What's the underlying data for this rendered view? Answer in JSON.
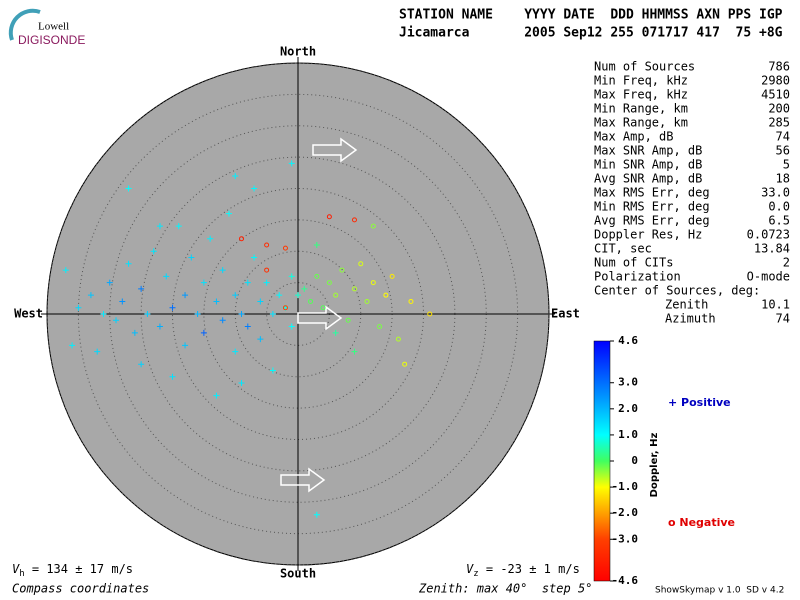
{
  "header": {
    "logo_top": "Lowell",
    "logo_bottom": "DIGISONDE",
    "labels": "STATION NAME    YYYY DATE  DDD HHMMSS AXN PPS IGP",
    "values": "Jicamarca       2005 Sep12 255 071717 417  75 +8G"
  },
  "stats": [
    [
      "Num of Sources",
      786
    ],
    [
      "Min Freq, kHz",
      2980
    ],
    [
      "Max Freq, kHz",
      4510
    ],
    [
      "Min Range, km",
      200
    ],
    [
      "Max Range, km",
      285
    ],
    [
      "Max Amp, dB",
      74
    ],
    [
      "Max SNR Amp, dB",
      56
    ],
    [
      "Min SNR Amp, dB",
      5
    ],
    [
      "Avg SNR Amp, dB",
      18
    ],
    [
      "Max RMS Err, deg",
      "33.0"
    ],
    [
      "Min RMS Err, deg",
      "0.0"
    ],
    [
      "Avg RMS Err, deg",
      6.5
    ],
    [
      "Doppler Res, Hz",
      0.0723
    ],
    [
      "CIT, sec",
      13.84
    ],
    [
      "Num of CITs",
      2
    ],
    [
      "Polarization",
      "O-mode"
    ],
    [
      "Center of Sources, deg:"
    ],
    [
      "Zenith",
      10.1
    ],
    [
      "Azimuth",
      74
    ]
  ],
  "footer": {
    "vh_symbol": "V",
    "vh_sub": "h",
    "vh_text": " = 134 ± 17 m/s",
    "vz_symbol": "V",
    "vz_sub": "z",
    "vz_text": " = -23 ± 1 m/s",
    "coords": "Compass coordinates",
    "zenith": "Zenith: max 40°  step 5°",
    "version": "ShowSkymap v 1.0  SD v 4.2"
  },
  "chart_data": {
    "type": "skymap",
    "compass": {
      "north": "North",
      "south": "South",
      "west": "West",
      "east": "East"
    },
    "xlim": [
      -40,
      40
    ],
    "ylim": [
      -40,
      40
    ],
    "rings": [
      5,
      10,
      15,
      20,
      25,
      30,
      35,
      40
    ],
    "colorbar": {
      "title": "Doppler, Hz",
      "lim": [
        -4.6,
        4.6
      ],
      "ticks": [
        4.6,
        {
          "value": 3,
          "label": "3.0"
        },
        {
          "value": 2,
          "label": "2.0"
        },
        {
          "value": 1,
          "label": "1.0"
        },
        0,
        {
          "value": -1,
          "label": "-1.0"
        },
        {
          "value": -2,
          "label": "-2.0"
        },
        {
          "value": -3,
          "label": "-3.0"
        },
        -4.6
      ],
      "colors": [
        [
          4.6,
          "#0000ff"
        ],
        [
          2.3,
          "#00a0ff"
        ],
        [
          1,
          "#00ffff"
        ],
        [
          0,
          "#40ff60"
        ],
        [
          -1,
          "#ffff00"
        ],
        [
          -2,
          "#ffa000"
        ],
        [
          -3,
          "#ff4000"
        ],
        [
          -4.6,
          "#ff0000"
        ]
      ]
    },
    "legend": {
      "positive": "+ Positive",
      "negative": "o Negative",
      "positive_color": "#0000c0",
      "negative_color": "#e00000"
    },
    "sources": [
      {
        "x": -37,
        "y": 7,
        "doppler": 1.2
      },
      {
        "x": -35,
        "y": 1,
        "doppler": 1.5
      },
      {
        "x": -33,
        "y": 3,
        "doppler": 1.8
      },
      {
        "x": -31,
        "y": 0,
        "doppler": 1.3
      },
      {
        "x": -30,
        "y": 5,
        "doppler": 2.2
      },
      {
        "x": -29,
        "y": -1,
        "doppler": 1.6
      },
      {
        "x": -28,
        "y": 2,
        "doppler": 2.5
      },
      {
        "x": -27,
        "y": 8,
        "doppler": 1.4
      },
      {
        "x": -26,
        "y": -3,
        "doppler": 1.9
      },
      {
        "x": -25,
        "y": 4,
        "doppler": 2.8
      },
      {
        "x": -24,
        "y": 0,
        "doppler": 1.7
      },
      {
        "x": -23,
        "y": 10,
        "doppler": 1.3
      },
      {
        "x": -22,
        "y": -2,
        "doppler": 2.1
      },
      {
        "x": -21,
        "y": 6,
        "doppler": 1.5
      },
      {
        "x": -20,
        "y": 1,
        "doppler": 3
      },
      {
        "x": -19,
        "y": 14,
        "doppler": 1.1
      },
      {
        "x": -18,
        "y": -5,
        "doppler": 1.8
      },
      {
        "x": -18,
        "y": 3,
        "doppler": 2.4
      },
      {
        "x": -17,
        "y": 9,
        "doppler": 1.6
      },
      {
        "x": -16,
        "y": 0,
        "doppler": 2
      },
      {
        "x": -15,
        "y": -3,
        "doppler": 3.2
      },
      {
        "x": -15,
        "y": 5,
        "doppler": 1.4
      },
      {
        "x": -14,
        "y": 12,
        "doppler": 1.2
      },
      {
        "x": -13,
        "y": 2,
        "doppler": 1.9
      },
      {
        "x": -12,
        "y": -1,
        "doppler": 2.6
      },
      {
        "x": -12,
        "y": 7,
        "doppler": 1.5
      },
      {
        "x": -11,
        "y": 16,
        "doppler": 1
      },
      {
        "x": -10,
        "y": 3,
        "doppler": 1.7
      },
      {
        "x": -10,
        "y": -6,
        "doppler": 1.3
      },
      {
        "x": -9,
        "y": 0,
        "doppler": 2.2
      },
      {
        "x": -8,
        "y": 5,
        "doppler": 1.4
      },
      {
        "x": -8,
        "y": -2,
        "doppler": 2.8
      },
      {
        "x": -7,
        "y": 9,
        "doppler": 1.1
      },
      {
        "x": -6,
        "y": 2,
        "doppler": 1.6
      },
      {
        "x": -6,
        "y": -4,
        "doppler": 1.9
      },
      {
        "x": -5,
        "y": 5,
        "doppler": 1.2
      },
      {
        "x": -4,
        "y": 0,
        "doppler": 1.4
      },
      {
        "x": -4,
        "y": -9,
        "doppler": 1
      },
      {
        "x": -3,
        "y": 3,
        "doppler": 1.1
      },
      {
        "x": -2,
        "y": 1,
        "doppler": 0.9
      },
      {
        "x": -1,
        "y": 6,
        "doppler": 0.8
      },
      {
        "x": -1,
        "y": -2,
        "doppler": 1
      },
      {
        "x": 0,
        "y": 3,
        "doppler": 0.7
      },
      {
        "x": -7,
        "y": 20,
        "doppler": 1.1
      },
      {
        "x": -27,
        "y": 20,
        "doppler": 1
      },
      {
        "x": -25,
        "y": -8,
        "doppler": 1.6
      },
      {
        "x": -20,
        "y": -10,
        "doppler": 1.4
      },
      {
        "x": -32,
        "y": -6,
        "doppler": 1.5
      },
      {
        "x": -13,
        "y": -13,
        "doppler": 1.2
      },
      {
        "x": -9,
        "y": -11,
        "doppler": 1.3
      },
      {
        "x": 3,
        "y": -32,
        "doppler": 1
      },
      {
        "x": -1,
        "y": 24,
        "doppler": 1.1
      },
      {
        "x": -10,
        "y": 22,
        "doppler": 1.2
      },
      {
        "x": -22,
        "y": 14,
        "doppler": 1.3
      },
      {
        "x": -36,
        "y": -5,
        "doppler": 1.2
      },
      {
        "x": 1,
        "y": 4,
        "doppler": 0.3
      },
      {
        "x": 2,
        "y": 2,
        "doppler": -0.1
      },
      {
        "x": 3,
        "y": 6,
        "doppler": -0.2
      },
      {
        "x": 4,
        "y": 1,
        "doppler": -0.1
      },
      {
        "x": 5,
        "y": 5,
        "doppler": -0.3
      },
      {
        "x": 6,
        "y": 3,
        "doppler": -0.5
      },
      {
        "x": 7,
        "y": 7,
        "doppler": -0.4
      },
      {
        "x": 8,
        "y": -1,
        "doppler": -0.2
      },
      {
        "x": 9,
        "y": 4,
        "doppler": -0.6
      },
      {
        "x": 10,
        "y": 8,
        "doppler": -0.8
      },
      {
        "x": 11,
        "y": 2,
        "doppler": -0.5
      },
      {
        "x": 12,
        "y": 5,
        "doppler": -0.9
      },
      {
        "x": 13,
        "y": -2,
        "doppler": -0.3
      },
      {
        "x": 14,
        "y": 3,
        "doppler": -1
      },
      {
        "x": 15,
        "y": 6,
        "doppler": -1.2
      },
      {
        "x": 16,
        "y": -4,
        "doppler": -0.6
      },
      {
        "x": 18,
        "y": 2,
        "doppler": -1.1
      },
      {
        "x": 21,
        "y": 0,
        "doppler": -1.3
      },
      {
        "x": 17,
        "y": -8,
        "doppler": -0.9
      },
      {
        "x": 12,
        "y": 14,
        "doppler": -0.4
      },
      {
        "x": 3,
        "y": 11,
        "doppler": 0.2
      },
      {
        "x": 6,
        "y": -3,
        "doppler": 0.4
      },
      {
        "x": 9,
        "y": -6,
        "doppler": 0.2
      },
      {
        "x": -9,
        "y": 12,
        "doppler": -3.8
      },
      {
        "x": -5,
        "y": 11,
        "doppler": -3.5
      },
      {
        "x": 5,
        "y": 15.5,
        "doppler": -3.9
      },
      {
        "x": 9,
        "y": 15,
        "doppler": -3.6
      },
      {
        "x": -5,
        "y": 7,
        "doppler": -3.4
      },
      {
        "x": -2,
        "y": 10.5,
        "doppler": -3.2
      },
      {
        "x": -2,
        "y": 1,
        "doppler": -3
      }
    ]
  }
}
